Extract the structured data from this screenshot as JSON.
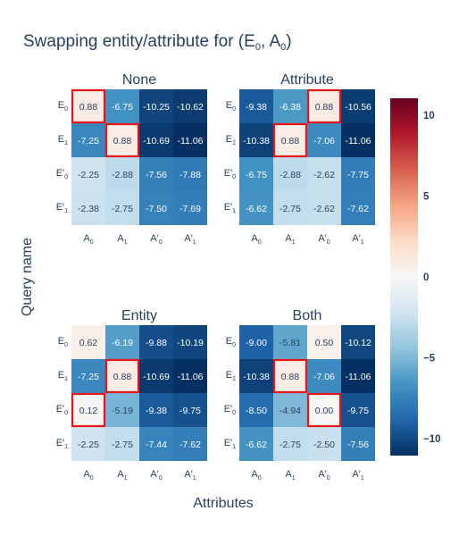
{
  "chart_data": {
    "type": "heatmap",
    "title": "Swapping entity/attribute for (E<sub>0</sub>, A<sub>0</sub>)",
    "xlabel": "Attributes",
    "ylabel": "Query name",
    "colorscale": "RdBu",
    "zlim": [
      -11.06,
      11.06
    ],
    "colorbar_ticks": [
      "10",
      "5",
      "0",
      "−5",
      "−10"
    ],
    "colorbar_tick_values": [
      10,
      5,
      0,
      -5,
      -10
    ],
    "x_tick_labels": [
      [
        "A",
        "0",
        ""
      ],
      [
        "A",
        "1",
        ""
      ],
      [
        "A",
        "0",
        "′"
      ],
      [
        "A",
        "1",
        "′"
      ]
    ],
    "y_tick_labels": [
      [
        "E",
        "0",
        ""
      ],
      [
        "E",
        "1",
        ""
      ],
      [
        "E",
        "0",
        "′"
      ],
      [
        "E",
        "1",
        "′"
      ]
    ],
    "panels": [
      {
        "title": "None",
        "values": [
          [
            0.88,
            -6.75,
            -10.25,
            -10.62
          ],
          [
            -7.25,
            0.88,
            -10.69,
            -11.06
          ],
          [
            -2.25,
            -2.88,
            -7.56,
            -7.88
          ],
          [
            -2.38,
            -2.75,
            -7.5,
            -7.69
          ]
        ],
        "highlight": [
          [
            0,
            0
          ],
          [
            1,
            1
          ]
        ]
      },
      {
        "title": "Attribute",
        "values": [
          [
            -9.38,
            -6.38,
            0.88,
            -10.56
          ],
          [
            -10.38,
            0.88,
            -7.06,
            -11.06
          ],
          [
            -6.75,
            -2.88,
            -2.62,
            -7.75
          ],
          [
            -6.62,
            -2.75,
            -2.62,
            -7.62
          ]
        ],
        "highlight": [
          [
            0,
            2
          ],
          [
            1,
            1
          ]
        ]
      },
      {
        "title": "Entity",
        "values": [
          [
            0.62,
            -6.19,
            -9.88,
            -10.19
          ],
          [
            -7.25,
            0.88,
            -10.69,
            -11.06
          ],
          [
            0.12,
            -5.19,
            -9.38,
            -9.75
          ],
          [
            -2.25,
            -2.75,
            -7.44,
            -7.62
          ]
        ],
        "highlight": [
          [
            2,
            0
          ],
          [
            1,
            1
          ]
        ]
      },
      {
        "title": "Both",
        "values": [
          [
            -9.0,
            -5.81,
            0.5,
            -10.12
          ],
          [
            -10.38,
            0.88,
            -7.06,
            -11.06
          ],
          [
            -8.5,
            -4.94,
            0.0,
            -9.75
          ],
          [
            -6.62,
            -2.75,
            -2.5,
            -7.56
          ]
        ],
        "highlight": [
          [
            2,
            2
          ],
          [
            1,
            1
          ]
        ]
      }
    ]
  }
}
